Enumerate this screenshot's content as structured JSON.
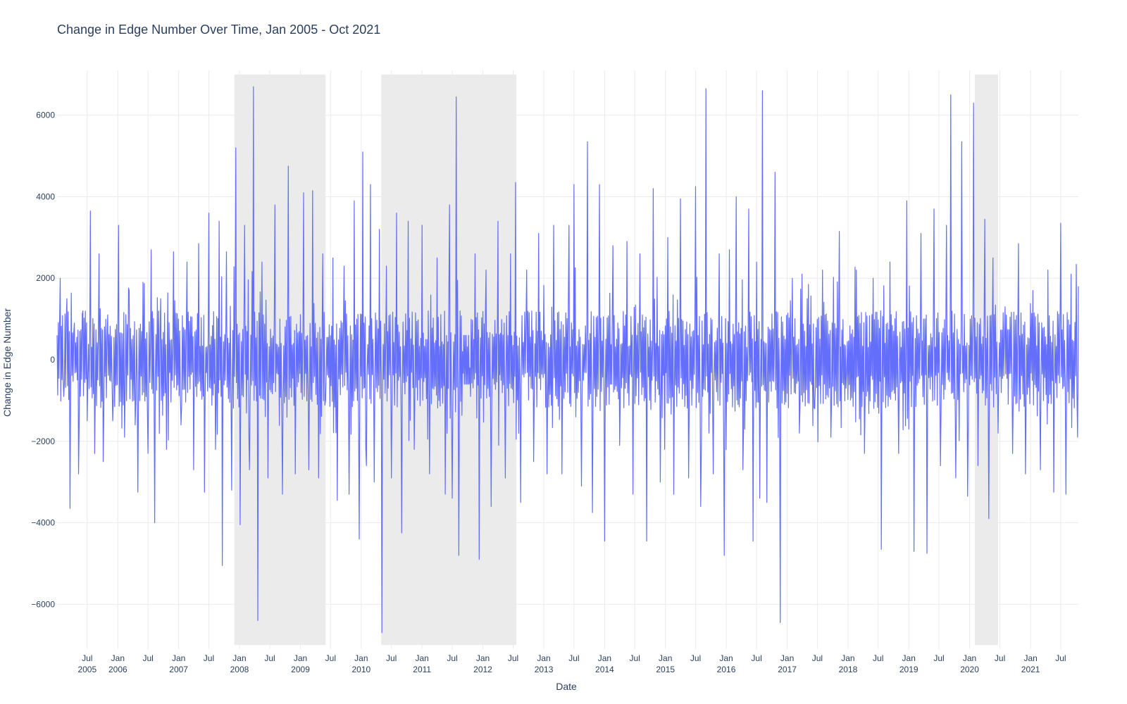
{
  "chart_data": {
    "type": "line",
    "title": "Change in Edge Number Over Time, Jan 2005 - Oct 2021",
    "xlabel": "Date",
    "ylabel": "Change in Edge Number",
    "xlim": [
      "2005-01-01",
      "2021-10-15"
    ],
    "ylim": [
      -7100,
      7100
    ],
    "y_ticks": [
      -6000,
      -4000,
      -2000,
      0,
      2000,
      4000,
      6000
    ],
    "y_tick_labels": [
      "−6000",
      "−4000",
      "−2000",
      "0",
      "2000",
      "4000",
      "6000"
    ],
    "x_ticks": [
      {
        "date": "2005-07-01",
        "label": "Jul",
        "year": "2005"
      },
      {
        "date": "2006-01-01",
        "label": "Jan",
        "year": "2006"
      },
      {
        "date": "2006-07-01",
        "label": "Jul",
        "year": ""
      },
      {
        "date": "2007-01-01",
        "label": "Jan",
        "year": "2007"
      },
      {
        "date": "2007-07-01",
        "label": "Jul",
        "year": ""
      },
      {
        "date": "2008-01-01",
        "label": "Jan",
        "year": "2008"
      },
      {
        "date": "2008-07-01",
        "label": "Jul",
        "year": ""
      },
      {
        "date": "2009-01-01",
        "label": "Jan",
        "year": "2009"
      },
      {
        "date": "2009-07-01",
        "label": "Jul",
        "year": ""
      },
      {
        "date": "2010-01-01",
        "label": "Jan",
        "year": "2010"
      },
      {
        "date": "2010-07-01",
        "label": "Jul",
        "year": ""
      },
      {
        "date": "2011-01-01",
        "label": "Jan",
        "year": "2011"
      },
      {
        "date": "2011-07-01",
        "label": "Jul",
        "year": ""
      },
      {
        "date": "2012-01-01",
        "label": "Jan",
        "year": "2012"
      },
      {
        "date": "2012-07-01",
        "label": "Jul",
        "year": ""
      },
      {
        "date": "2013-01-01",
        "label": "Jan",
        "year": "2013"
      },
      {
        "date": "2013-07-01",
        "label": "Jul",
        "year": ""
      },
      {
        "date": "2014-01-01",
        "label": "Jan",
        "year": "2014"
      },
      {
        "date": "2014-07-01",
        "label": "Jul",
        "year": ""
      },
      {
        "date": "2015-01-01",
        "label": "Jan",
        "year": "2015"
      },
      {
        "date": "2015-07-01",
        "label": "Jul",
        "year": ""
      },
      {
        "date": "2016-01-01",
        "label": "Jan",
        "year": "2016"
      },
      {
        "date": "2016-07-01",
        "label": "Jul",
        "year": ""
      },
      {
        "date": "2017-01-01",
        "label": "Jan",
        "year": "2017"
      },
      {
        "date": "2017-07-01",
        "label": "Jul",
        "year": ""
      },
      {
        "date": "2018-01-01",
        "label": "Jan",
        "year": "2018"
      },
      {
        "date": "2018-07-01",
        "label": "Jul",
        "year": ""
      },
      {
        "date": "2019-01-01",
        "label": "Jan",
        "year": "2019"
      },
      {
        "date": "2019-07-01",
        "label": "Jul",
        "year": ""
      },
      {
        "date": "2020-01-01",
        "label": "Jan",
        "year": "2020"
      },
      {
        "date": "2020-07-01",
        "label": "Jul",
        "year": ""
      },
      {
        "date": "2021-01-01",
        "label": "Jan",
        "year": "2021"
      },
      {
        "date": "2021-07-01",
        "label": "Jul",
        "year": ""
      }
    ],
    "shaded_regions": [
      {
        "start": "2007-12-01",
        "end": "2009-06-01"
      },
      {
        "start": "2010-05-01",
        "end": "2012-07-20"
      },
      {
        "start": "2020-02-01",
        "end": "2020-06-20"
      }
    ],
    "shaded_region_y": [
      -7000,
      7000
    ],
    "series_color": "#636efa",
    "shade_color": "#d3d3d3",
    "series": [
      {
        "points": [
          [
            "2005-01-01",
            600
          ],
          [
            "2005-01-20",
            2000
          ],
          [
            "2005-02-10",
            -900
          ],
          [
            "2005-03-01",
            1500
          ],
          [
            "2005-03-20",
            -3650
          ],
          [
            "2005-04-15",
            900
          ],
          [
            "2005-05-10",
            -2800
          ],
          [
            "2005-06-05",
            1200
          ],
          [
            "2005-07-01",
            -1500
          ],
          [
            "2005-07-20",
            3650
          ],
          [
            "2005-08-15",
            -2300
          ],
          [
            "2005-09-10",
            2600
          ],
          [
            "2005-10-05",
            -2500
          ],
          [
            "2005-11-01",
            1100
          ],
          [
            "2005-12-01",
            -1500
          ],
          [
            "2006-01-05",
            3300
          ],
          [
            "2006-02-10",
            -1900
          ],
          [
            "2006-03-10",
            1700
          ],
          [
            "2006-04-15",
            -1600
          ],
          [
            "2006-05-01",
            -3250
          ],
          [
            "2006-06-01",
            1900
          ],
          [
            "2006-07-01",
            -2300
          ],
          [
            "2006-07-20",
            2700
          ],
          [
            "2006-08-10",
            -4000
          ],
          [
            "2006-09-15",
            1500
          ],
          [
            "2006-10-20",
            -2200
          ],
          [
            "2006-12-01",
            2650
          ],
          [
            "2007-01-15",
            -1600
          ],
          [
            "2007-02-20",
            2400
          ],
          [
            "2007-04-01",
            -2700
          ],
          [
            "2007-05-01",
            2850
          ],
          [
            "2007-06-05",
            -3250
          ],
          [
            "2007-07-01",
            3600
          ],
          [
            "2007-08-10",
            -2200
          ],
          [
            "2007-09-01",
            3400
          ],
          [
            "2007-09-20",
            -5050
          ],
          [
            "2007-10-15",
            2650
          ],
          [
            "2007-11-15",
            -3200
          ],
          [
            "2007-12-10",
            5200
          ],
          [
            "2008-01-05",
            -4050
          ],
          [
            "2008-02-01",
            3300
          ],
          [
            "2008-03-01",
            -2700
          ],
          [
            "2008-03-25",
            6700
          ],
          [
            "2008-04-20",
            -6400
          ],
          [
            "2008-05-15",
            2400
          ],
          [
            "2008-06-20",
            -2900
          ],
          [
            "2008-08-01",
            3800
          ],
          [
            "2008-09-15",
            -3300
          ],
          [
            "2008-10-20",
            4750
          ],
          [
            "2008-12-01",
            -2800
          ],
          [
            "2009-01-20",
            4100
          ],
          [
            "2009-02-20",
            -2700
          ],
          [
            "2009-03-15",
            4150
          ],
          [
            "2009-04-20",
            -2900
          ],
          [
            "2009-05-15",
            2600
          ],
          [
            "2009-06-01",
            -1000
          ],
          [
            "2009-07-15",
            2500
          ],
          [
            "2009-08-10",
            -3450
          ],
          [
            "2009-09-20",
            2300
          ],
          [
            "2009-10-20",
            -3300
          ],
          [
            "2009-11-20",
            3900
          ],
          [
            "2009-12-20",
            -4400
          ],
          [
            "2010-01-10",
            5100
          ],
          [
            "2010-02-01",
            -2600
          ],
          [
            "2010-02-25",
            4300
          ],
          [
            "2010-03-20",
            -3000
          ],
          [
            "2010-04-20",
            3200
          ],
          [
            "2010-05-05",
            -6700
          ],
          [
            "2010-06-01",
            2300
          ],
          [
            "2010-07-01",
            -2900
          ],
          [
            "2010-08-01",
            3600
          ],
          [
            "2010-09-01",
            -4250
          ],
          [
            "2010-10-10",
            3400
          ],
          [
            "2010-11-15",
            -2200
          ],
          [
            "2011-01-01",
            3300
          ],
          [
            "2011-02-15",
            -2800
          ],
          [
            "2011-04-01",
            2500
          ],
          [
            "2011-05-20",
            -3300
          ],
          [
            "2011-06-15",
            3800
          ],
          [
            "2011-07-01",
            -3400
          ],
          [
            "2011-07-25",
            6450
          ],
          [
            "2011-08-10",
            -4800
          ],
          [
            "2011-09-01",
            200
          ],
          [
            "2011-10-15",
            -200
          ],
          [
            "2011-11-15",
            2600
          ],
          [
            "2011-12-10",
            -4900
          ],
          [
            "2012-01-20",
            2200
          ],
          [
            "2012-02-20",
            -3600
          ],
          [
            "2012-04-01",
            3400
          ],
          [
            "2012-05-15",
            -2900
          ],
          [
            "2012-06-15",
            2600
          ],
          [
            "2012-07-15",
            4350
          ],
          [
            "2012-08-15",
            -3500
          ],
          [
            "2012-09-20",
            2200
          ],
          [
            "2012-11-01",
            -2500
          ],
          [
            "2012-12-01",
            3100
          ],
          [
            "2013-01-20",
            -2800
          ],
          [
            "2013-03-01",
            3300
          ],
          [
            "2013-04-20",
            -2800
          ],
          [
            "2013-06-01",
            3300
          ],
          [
            "2013-07-01",
            4300
          ],
          [
            "2013-08-15",
            -3100
          ],
          [
            "2013-09-20",
            5350
          ],
          [
            "2013-10-20",
            -3750
          ],
          [
            "2013-12-01",
            4300
          ],
          [
            "2014-01-01",
            -4450
          ],
          [
            "2014-02-20",
            2800
          ],
          [
            "2014-04-01",
            -2100
          ],
          [
            "2014-05-15",
            2900
          ],
          [
            "2014-06-20",
            -3300
          ],
          [
            "2014-08-01",
            2600
          ],
          [
            "2014-09-10",
            -4450
          ],
          [
            "2014-10-20",
            4200
          ],
          [
            "2014-12-01",
            -3000
          ],
          [
            "2015-01-15",
            3000
          ],
          [
            "2015-02-20",
            -3300
          ],
          [
            "2015-04-01",
            3950
          ],
          [
            "2015-05-20",
            -2900
          ],
          [
            "2015-07-01",
            4250
          ],
          [
            "2015-08-01",
            -3600
          ],
          [
            "2015-09-01",
            6650
          ],
          [
            "2015-10-15",
            -2800
          ],
          [
            "2015-11-20",
            2600
          ],
          [
            "2015-12-20",
            -4800
          ],
          [
            "2016-01-20",
            2700
          ],
          [
            "2016-03-01",
            4000
          ],
          [
            "2016-04-10",
            -2700
          ],
          [
            "2016-05-15",
            3700
          ],
          [
            "2016-06-10",
            -4450
          ],
          [
            "2016-07-01",
            2400
          ],
          [
            "2016-07-20",
            -3400
          ],
          [
            "2016-08-05",
            6600
          ],
          [
            "2016-09-01",
            -3500
          ],
          [
            "2016-10-20",
            4600
          ],
          [
            "2016-11-20",
            -6450
          ],
          [
            "2016-12-20",
            500
          ],
          [
            "2017-02-01",
            2000
          ],
          [
            "2017-03-15",
            -1800
          ],
          [
            "2017-05-01",
            1500
          ],
          [
            "2017-06-15",
            -1200
          ],
          [
            "2017-08-01",
            2200
          ],
          [
            "2017-09-20",
            -1900
          ],
          [
            "2017-11-10",
            3150
          ],
          [
            "2017-12-20",
            -700
          ],
          [
            "2018-02-20",
            2200
          ],
          [
            "2018-04-10",
            -2300
          ],
          [
            "2018-06-01",
            2000
          ],
          [
            "2018-07-20",
            -4650
          ],
          [
            "2018-09-10",
            2400
          ],
          [
            "2018-11-01",
            -2300
          ],
          [
            "2018-12-20",
            3900
          ],
          [
            "2019-02-01",
            -4700
          ],
          [
            "2019-03-15",
            3100
          ],
          [
            "2019-04-20",
            -4750
          ],
          [
            "2019-06-01",
            3700
          ],
          [
            "2019-07-10",
            -2600
          ],
          [
            "2019-08-15",
            3300
          ],
          [
            "2019-09-10",
            6500
          ],
          [
            "2019-10-10",
            -2900
          ],
          [
            "2019-11-15",
            5350
          ],
          [
            "2019-12-20",
            -3350
          ],
          [
            "2020-01-25",
            6300
          ],
          [
            "2020-02-20",
            -2600
          ],
          [
            "2020-04-01",
            3450
          ],
          [
            "2020-04-25",
            -3900
          ],
          [
            "2020-05-20",
            2500
          ],
          [
            "2020-06-20",
            -1800
          ],
          [
            "2020-08-01",
            1300
          ],
          [
            "2020-09-15",
            -2300
          ],
          [
            "2020-10-20",
            2850
          ],
          [
            "2020-12-01",
            -2800
          ],
          [
            "2021-01-15",
            1700
          ],
          [
            "2021-03-01",
            -2700
          ],
          [
            "2021-04-15",
            2200
          ],
          [
            "2021-05-20",
            -3250
          ],
          [
            "2021-07-01",
            3350
          ],
          [
            "2021-08-01",
            -3300
          ],
          [
            "2021-09-01",
            2100
          ],
          [
            "2021-10-10",
            -1900
          ],
          [
            "2021-10-15",
            1800
          ]
        ]
      }
    ]
  }
}
